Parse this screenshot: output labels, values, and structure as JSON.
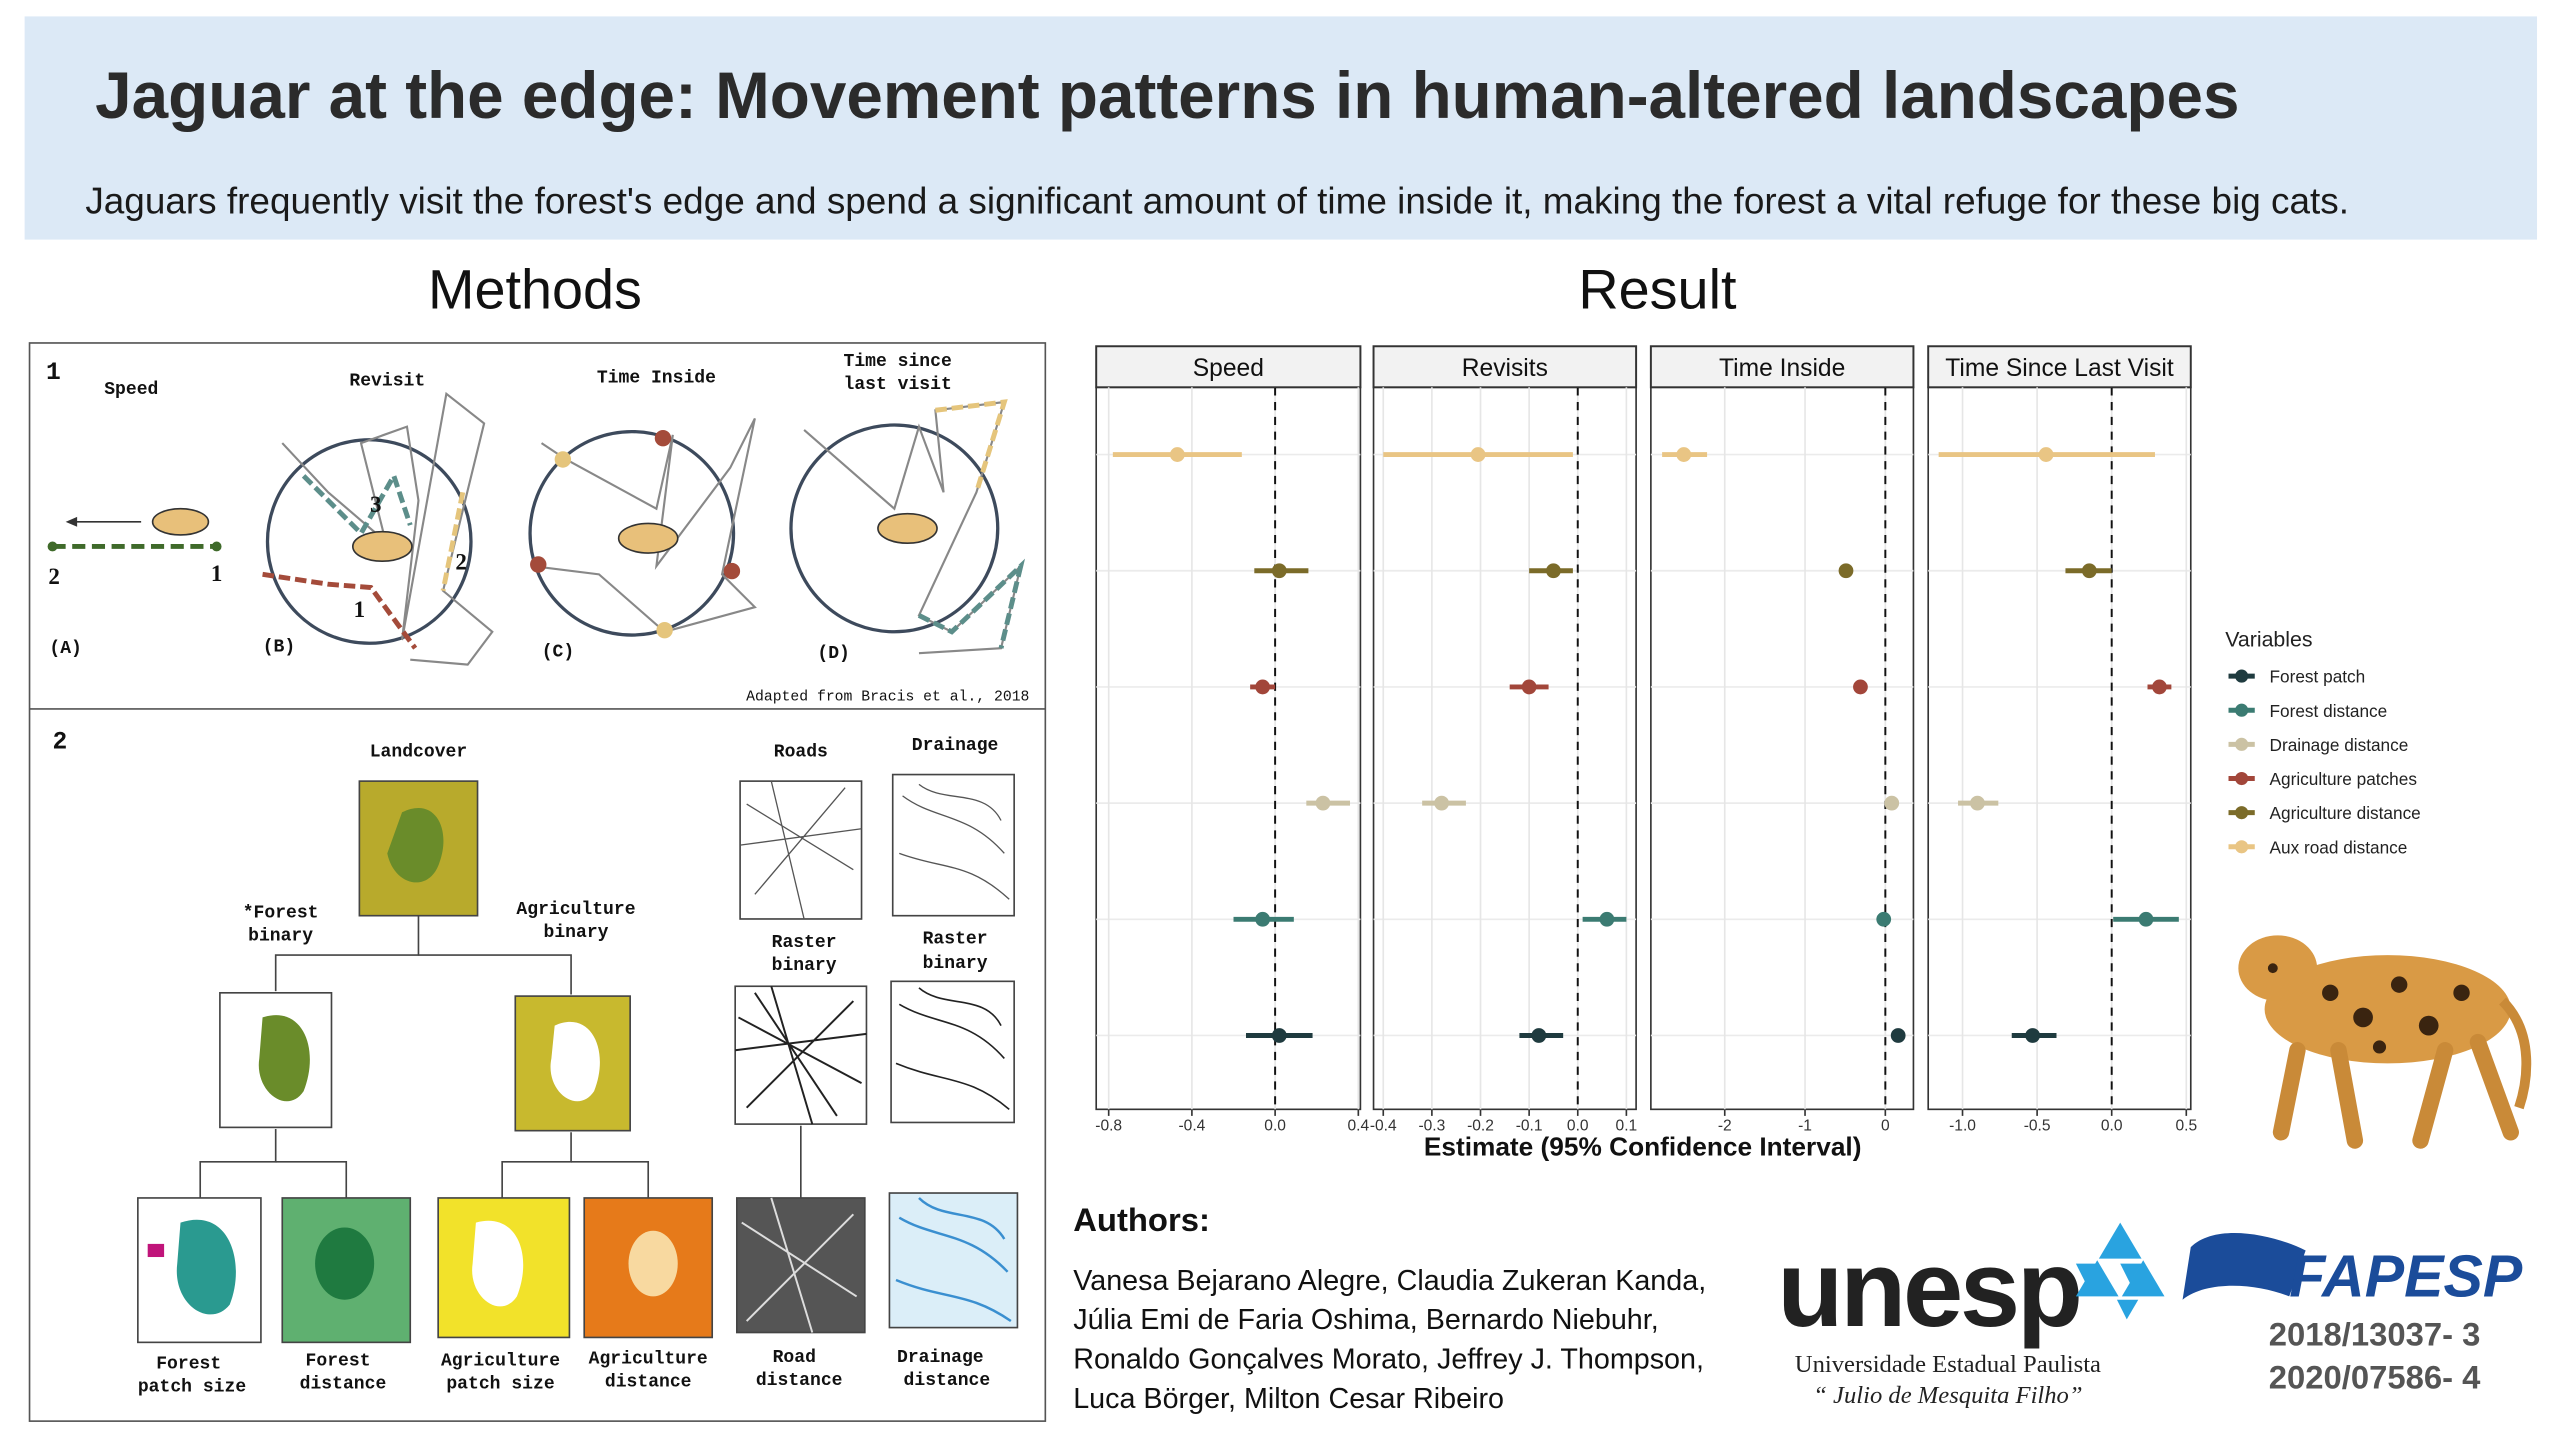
{
  "header": {
    "title": "Jaguar at the edge: Movement patterns in human-altered landscapes",
    "subtitle": "Jaguars frequently visit the forest's edge and spend a significant amount of time inside it, making the forest a vital refuge for these big cats."
  },
  "methods": {
    "heading": "Methods",
    "panel1": {
      "number": "1",
      "speed": "Speed",
      "revisit": "Revisit",
      "time_inside": "Time Inside",
      "time_since": [
        "Time since",
        "last visit"
      ],
      "letters": [
        "(A)",
        "(B)",
        "(C)",
        "(D)"
      ],
      "speed_points": [
        "2",
        "1"
      ],
      "revisit_points": [
        "3",
        "2",
        "1"
      ],
      "credit": "Adapted from Bracis et al., 2018"
    },
    "panel2": {
      "number": "2",
      "landcover": "Landcover",
      "forest_binary": [
        "*Forest",
        "binary"
      ],
      "agriculture_binary": [
        "Agriculture",
        "binary"
      ],
      "roads": "Roads",
      "drainage": "Drainage",
      "raster_binary": [
        "Raster",
        "binary"
      ],
      "forest_patch_size": [
        "Forest",
        "patch size"
      ],
      "forest_distance": [
        "Forest",
        "distance"
      ],
      "agriculture_patch_size": [
        "Agriculture",
        "patch size"
      ],
      "agriculture_distance": [
        "Agriculture",
        "distance"
      ],
      "road_distance": [
        "Road",
        "distance"
      ],
      "drainage_distance": [
        "Drainage",
        "distance"
      ]
    }
  },
  "result": {
    "heading": "Result"
  },
  "chart_data": {
    "type": "forest",
    "x_label": "Estimate (95% Confidence Interval)",
    "legend_title": "Variables",
    "grid": true,
    "variables": [
      {
        "name": "Forest patch",
        "color": "#1f3b3f"
      },
      {
        "name": "Forest distance",
        "color": "#3b7b72"
      },
      {
        "name": "Drainage distance",
        "color": "#cbc2a4"
      },
      {
        "name": "Agriculture patches",
        "color": "#a2463a"
      },
      {
        "name": "Agriculture distance",
        "color": "#7b6b29"
      },
      {
        "name": "Aux road distance",
        "color": "#e9c584"
      }
    ],
    "facets": [
      {
        "title": "Speed",
        "xlim": [
          -0.86,
          0.41
        ],
        "xticks": [
          -0.8,
          -0.4,
          {
            "value": 0,
            "label": "0.0"
          },
          0.4
        ],
        "estimates": [
          0.02,
          -0.06,
          0.23,
          -0.06,
          0.02,
          -0.47
        ],
        "lower": [
          -0.14,
          -0.2,
          0.15,
          -0.12,
          -0.1,
          -0.78
        ],
        "upper": [
          0.18,
          0.09,
          0.36,
          0.0,
          0.16,
          -0.16
        ]
      },
      {
        "title": "Revisits",
        "xlim": [
          -0.42,
          0.12
        ],
        "xticks": [
          -0.4,
          -0.3,
          -0.2,
          -0.1,
          {
            "value": 0,
            "label": "0.0"
          },
          0.1
        ],
        "estimates": [
          -0.08,
          0.06,
          -0.28,
          -0.1,
          -0.05,
          -0.205
        ],
        "lower": [
          -0.12,
          0.01,
          -0.32,
          -0.14,
          -0.1,
          -0.4
        ],
        "upper": [
          -0.03,
          0.1,
          -0.23,
          -0.06,
          -0.01,
          -0.01
        ]
      },
      {
        "title": "Time Inside",
        "xlim": [
          -2.92,
          0.35
        ],
        "xticks": [
          -2,
          -1,
          0
        ],
        "estimates": [
          0.16,
          -0.02,
          0.08,
          -0.31,
          -0.49,
          -2.51
        ],
        "lower": [
          0.12,
          -0.06,
          0.04,
          -0.35,
          -0.53,
          -2.78
        ],
        "upper": [
          0.2,
          0.02,
          0.12,
          -0.27,
          -0.45,
          -2.22
        ]
      },
      {
        "title": "Time Since Last Visit",
        "xlim": [
          -1.23,
          0.53
        ],
        "xticks": [
          {
            "value": -1,
            "label": "-1.0"
          },
          -0.5,
          {
            "value": 0,
            "label": "0.0"
          },
          0.5
        ],
        "estimates": [
          -0.53,
          0.23,
          -0.9,
          0.32,
          -0.15,
          -0.44
        ],
        "lower": [
          -0.67,
          0.01,
          -1.03,
          0.24,
          -0.31,
          -1.16
        ],
        "upper": [
          -0.37,
          0.45,
          -0.76,
          0.4,
          0.0,
          0.29
        ]
      }
    ]
  },
  "authors": {
    "heading": "Authors:",
    "lines": [
      "Vanesa Bejarano Alegre, Claudia Zukeran Kanda,",
      "Júlia Emi de Faria Oshima, Bernardo Niebuhr,",
      "Ronaldo Gonçalves Morato, Jeffrey J. Thompson,",
      "Luca Börger, Milton Cesar Ribeiro"
    ]
  },
  "logos": {
    "unesp": "unesp",
    "university": "Universidade Estadual Paulista",
    "university_sub": "“ Julio de Mesquita Filho”",
    "fapesp": "FAPESP",
    "grants": [
      "2018/13037- 3",
      "2020/07586- 4"
    ]
  }
}
